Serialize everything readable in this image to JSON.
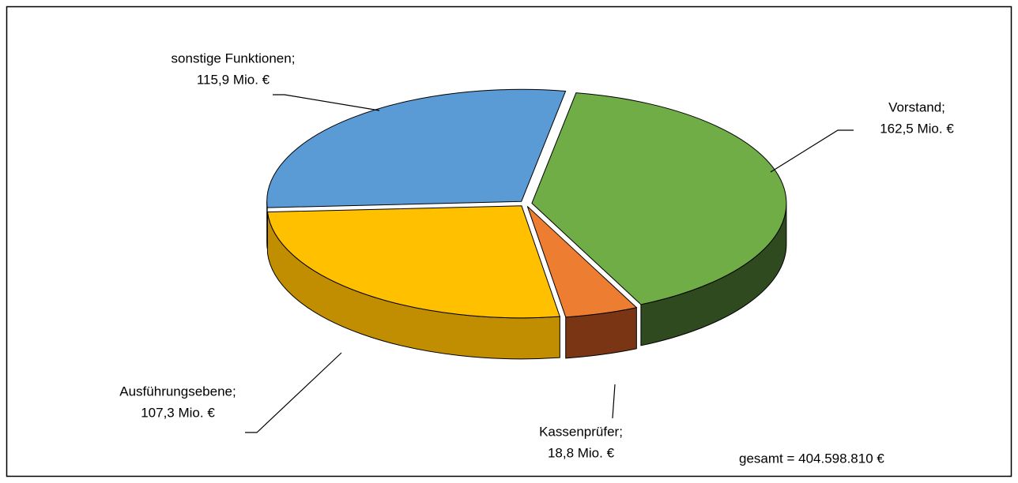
{
  "chart_data": {
    "type": "pie3d",
    "categories": [
      "Vorstand;",
      "Kassenprüfer;",
      "Ausführungsebene;",
      "sonstige Funktionen;"
    ],
    "values": [
      162.5,
      18.8,
      107.3,
      115.9
    ],
    "value_labels": [
      "162,5 Mio. €",
      "18,8 Mio. €",
      "107,3 Mio. €",
      "115,9 Mio. €"
    ],
    "colors": [
      "#70ad47",
      "#ed7d31",
      "#ffc000",
      "#5b9bd5"
    ],
    "side_colors": [
      "#2f4a1f",
      "#7a3514",
      "#c08e00",
      "#2e5a85"
    ],
    "annotation": "gesamt = 404.598.810 €"
  }
}
